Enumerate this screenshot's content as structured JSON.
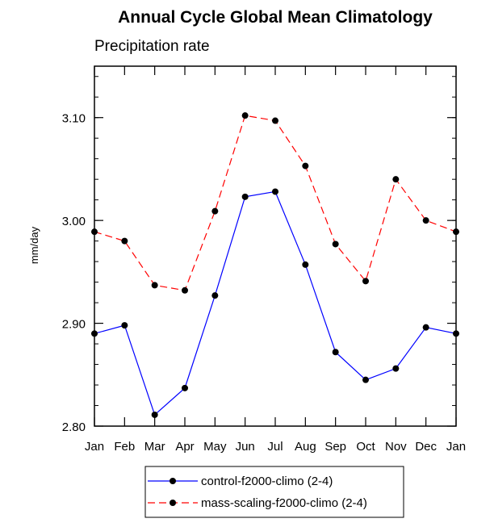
{
  "chart_data": {
    "type": "line",
    "title": "Annual Cycle Global Mean Climatology",
    "subtitle": "Precipitation rate",
    "xlabel": "",
    "ylabel": "mm/day",
    "categories": [
      "Jan",
      "Feb",
      "Mar",
      "Apr",
      "May",
      "Jun",
      "Jul",
      "Aug",
      "Sep",
      "Oct",
      "Nov",
      "Dec",
      "Jan"
    ],
    "ylim": [
      2.8,
      3.15
    ],
    "yticks": [
      "2.80",
      "2.90",
      "3.00",
      "3.10"
    ],
    "grid": false,
    "legend_position": "bottom-center",
    "series": [
      {
        "name": "control-f2000-climo (2-4)",
        "color": "#0000ff",
        "style": "solid",
        "values": [
          2.89,
          2.898,
          2.811,
          2.837,
          2.927,
          3.023,
          3.028,
          2.957,
          2.872,
          2.845,
          2.856,
          2.896,
          2.89
        ]
      },
      {
        "name": "mass-scaling-f2000-climo (2-4)",
        "color": "#ff0000",
        "style": "dashed",
        "values": [
          2.989,
          2.98,
          2.937,
          2.932,
          3.009,
          3.102,
          3.097,
          3.053,
          2.977,
          2.941,
          3.04,
          3.0,
          2.989
        ]
      }
    ]
  }
}
